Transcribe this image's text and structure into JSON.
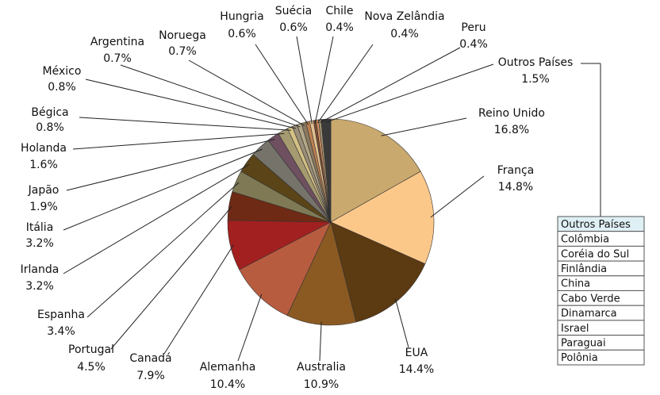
{
  "chart_data": {
    "type": "pie",
    "categories": [
      "Reino Unido",
      "França",
      "EUA",
      "Australia",
      "Alemanha",
      "Canadá",
      "Portugal",
      "Espanha",
      "Irlanda",
      "Itália",
      "Japão",
      "Holanda",
      "Bégica",
      "México",
      "Argentina",
      "Noruega",
      "Hungria",
      "Suécia",
      "Chile",
      "Nova Zelândia",
      "Peru",
      "Outros Países"
    ],
    "values": [
      16.8,
      14.8,
      14.4,
      10.9,
      10.4,
      7.9,
      4.5,
      3.4,
      3.2,
      3.2,
      1.9,
      1.6,
      0.8,
      0.8,
      0.7,
      0.7,
      0.6,
      0.6,
      0.4,
      0.4,
      0.4,
      1.5
    ],
    "value_labels": [
      "16.8%",
      "14.8%",
      "14.4%",
      "10.9%",
      "10.4%",
      "7.9%",
      "4.5%",
      "3.4%",
      "3.2%",
      "3.2%",
      "1.9%",
      "1.6%",
      "0.8%",
      "0.8%",
      "0.7%",
      "0.7%",
      "0.6%",
      "0.6%",
      "0.4%",
      "0.4%",
      "0.4%",
      "1.5%"
    ],
    "colors": [
      "#c9a96e",
      "#fcc88a",
      "#5c3a12",
      "#8b5a22",
      "#b85c40",
      "#a22020",
      "#6e2a14",
      "#7f7a55",
      "#5a4418",
      "#75736a",
      "#6f5060",
      "#a59a70",
      "#d4c084",
      "#9a8e78",
      "#b5a888",
      "#8a7a60",
      "#c08050",
      "#e0c090",
      "#7a4a30",
      "#d09060",
      "#a09070",
      "#3a3a3a"
    ],
    "others_list": {
      "title": "Outros Países",
      "items": [
        "Colômbia",
        "Coréia do Sul",
        "Finlândia",
        "China",
        "Cabo Verde",
        "Dinamarca",
        "Israel",
        "Paraguai",
        "Polônia"
      ]
    }
  }
}
